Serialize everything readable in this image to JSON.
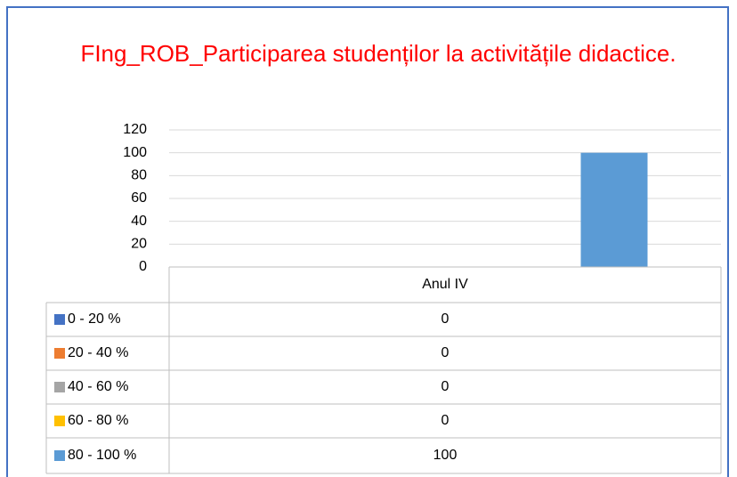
{
  "chart_data": {
    "type": "bar",
    "title": "FIng_ROB_Participarea studenților la activitățile didactice.",
    "categories": [
      "Anul IV"
    ],
    "series": [
      {
        "name": "0 - 20 %",
        "color": "#4472c4",
        "values": [
          0
        ]
      },
      {
        "name": "20 - 40 %",
        "color": "#ed7d31",
        "values": [
          0
        ]
      },
      {
        "name": "40 - 60 %",
        "color": "#a5a5a5",
        "values": [
          0
        ]
      },
      {
        "name": "60 - 80 %",
        "color": "#ffc000",
        "values": [
          0
        ]
      },
      {
        "name": "80 - 100 %",
        "color": "#5b9bd5",
        "values": [
          100
        ]
      }
    ],
    "ylim": [
      0,
      120
    ],
    "yticks": [
      0,
      20,
      40,
      60,
      80,
      100,
      120
    ],
    "grid": true,
    "legend": "table"
  }
}
